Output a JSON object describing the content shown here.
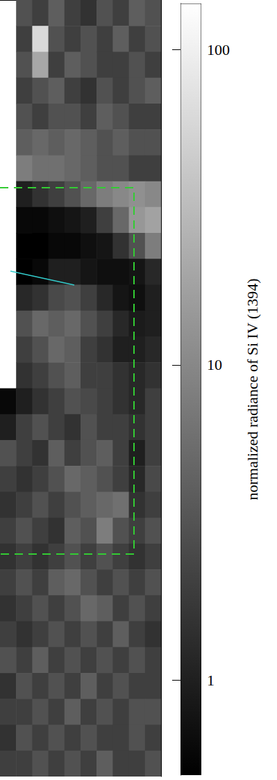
{
  "chart_data": {
    "type": "heatmap",
    "log": true,
    "tick_labels": false,
    "cells": [
      [
        null,
        3,
        2,
        4,
        2,
        1.5,
        3,
        2,
        4,
        3
      ],
      [
        null,
        2,
        60,
        3,
        2,
        3,
        2,
        4,
        2,
        3
      ],
      [
        null,
        3,
        20,
        2,
        4,
        3,
        2,
        2,
        3,
        2
      ],
      [
        null,
        2,
        3,
        4,
        2,
        1.5,
        3,
        2,
        3,
        4
      ],
      [
        null,
        3,
        2,
        3,
        3,
        2,
        4,
        3,
        2,
        2
      ],
      [
        null,
        4,
        5,
        4,
        5,
        4,
        3,
        4,
        3,
        3
      ],
      [
        null,
        8,
        6,
        6,
        5,
        4,
        3,
        3,
        2,
        2
      ],
      [
        null,
        1,
        1.5,
        2,
        3,
        5,
        8,
        10,
        12,
        10
      ],
      [
        null,
        0.6,
        0.6,
        0.7,
        0.8,
        1,
        2,
        5,
        14,
        18
      ],
      [
        null,
        0.5,
        0.5,
        0.6,
        0.6,
        0.7,
        0.8,
        1.5,
        3,
        8
      ],
      [
        null,
        0.5,
        0.6,
        1,
        1,
        0.8,
        0.7,
        0.7,
        0.8,
        1.2
      ],
      [
        null,
        1.2,
        1.5,
        2.5,
        3,
        2,
        1.2,
        0.8,
        0.7,
        1
      ],
      [
        null,
        3,
        5,
        4,
        5,
        3,
        2,
        1.2,
        0.9,
        1
      ],
      [
        null,
        2,
        3,
        5,
        4,
        2,
        1.5,
        1,
        1,
        1.2
      ],
      [
        null,
        1.5,
        2,
        3,
        4,
        2,
        2,
        1.5,
        1.2,
        1.5
      ],
      [
        0.6,
        1,
        1.5,
        2,
        3,
        2.5,
        2,
        1.5,
        1.2,
        2
      ],
      [
        1,
        2,
        3,
        2,
        1.5,
        3,
        2,
        2,
        1.5,
        2
      ],
      [
        3,
        2,
        1.5,
        4,
        2,
        3,
        4,
        2,
        1,
        2
      ],
      [
        2,
        1.5,
        2,
        3,
        5,
        4,
        3,
        2,
        1.2,
        2.5
      ],
      [
        1.5,
        2,
        3,
        2,
        3,
        4,
        5,
        6,
        1.5,
        2
      ],
      [
        2,
        3,
        2,
        1.5,
        4,
        3,
        8,
        3,
        2,
        3
      ],
      [
        1.5,
        2,
        1.5,
        2,
        3,
        2,
        3,
        2,
        1.5,
        2
      ],
      [
        2,
        3,
        2,
        4,
        5,
        3,
        2,
        3,
        2,
        3
      ],
      [
        1.5,
        2,
        3,
        2,
        3,
        5,
        4,
        2,
        3,
        2
      ],
      [
        2,
        1.5,
        2,
        3,
        2,
        3,
        2,
        4,
        2,
        1.5
      ],
      [
        3,
        2,
        4,
        2,
        3,
        2,
        3,
        2,
        3,
        2
      ],
      [
        1.5,
        3,
        2,
        3,
        2,
        4,
        2,
        3,
        2,
        2
      ],
      [
        2,
        2,
        3,
        2,
        4,
        2,
        3,
        2,
        3,
        3
      ],
      [
        1.5,
        3,
        2,
        3,
        2,
        3,
        2,
        2,
        3,
        2
      ],
      [
        2,
        2,
        3,
        2,
        3,
        2,
        4,
        2,
        2,
        3
      ]
    ],
    "colorbar": {
      "label": "normalized radiance of Si IV (1394)",
      "range": [
        0.5,
        140
      ],
      "ticks": [
        1,
        10,
        100
      ]
    }
  }
}
